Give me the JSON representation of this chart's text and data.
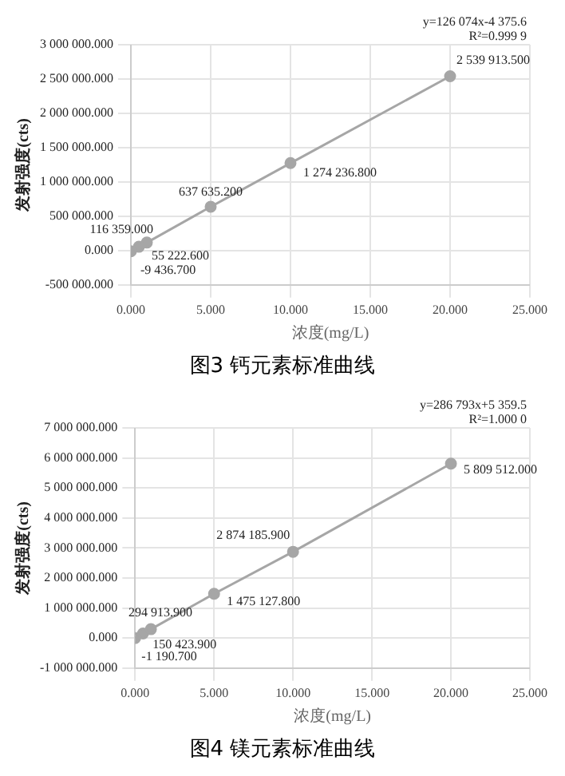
{
  "chart_data": [
    {
      "type": "line",
      "title": "图3 钙元素标准曲线",
      "xlabel": "浓度(mg/L)",
      "ylabel": "发射强度(cts)",
      "x": [
        0,
        0.5,
        1,
        5,
        10,
        20
      ],
      "series": [
        {
          "color": "#a6a6a6",
          "values": [
            -9436.7,
            55222.6,
            116359,
            637635.2,
            1274236.8,
            2539913.5
          ],
          "value_labels": [
            "-9 436.700",
            "55 222.600",
            "116 359.000",
            "637 635.200",
            "1 274 236.800",
            "2 539 913.500"
          ]
        }
      ],
      "xlim": [
        0,
        25
      ],
      "xticks": [
        {
          "value": 0,
          "label": "0.000"
        },
        {
          "value": 5,
          "label": "5.000"
        },
        {
          "value": 10,
          "label": "10.000"
        },
        {
          "value": 15,
          "label": "15.000"
        },
        {
          "value": 20,
          "label": "20.000"
        },
        {
          "value": 25,
          "label": "25.000"
        }
      ],
      "ylim": [
        -500000,
        3000000
      ],
      "yticks": [
        {
          "value": -500000,
          "label": "-500 000.000"
        },
        {
          "value": 0,
          "label": "0.000"
        },
        {
          "value": 500000,
          "label": "500 000.000"
        },
        {
          "value": 1000000,
          "label": "1 000 000.000"
        },
        {
          "value": 1500000,
          "label": "1 500 000.000"
        },
        {
          "value": 2000000,
          "label": "2 000 000.000"
        },
        {
          "value": 2500000,
          "label": "2 500 000.000"
        },
        {
          "value": 3000000,
          "label": "3 000 000.000"
        }
      ],
      "annotations": [
        "y=126 074x-4 375.6",
        "R²=0.999 9"
      ],
      "grid": true,
      "legend": false,
      "marker": "circle",
      "line_style": "solid"
    },
    {
      "type": "line",
      "title": "图4 镁元素标准曲线",
      "xlabel": "浓度(mg/L)",
      "ylabel": "发射强度(cts)",
      "x": [
        0,
        0.5,
        1,
        5,
        10,
        20
      ],
      "series": [
        {
          "color": "#a6a6a6",
          "values": [
            -1190.7,
            150423.9,
            294913.9,
            1475127.8,
            2874185.9,
            5809512
          ],
          "value_labels": [
            "-1 190.700",
            "150 423.900",
            "294 913.900",
            "1 475 127.800",
            "2 874 185.900",
            "5 809 512.000"
          ]
        }
      ],
      "xlim": [
        0,
        25
      ],
      "xticks": [
        {
          "value": 0,
          "label": "0.000"
        },
        {
          "value": 5,
          "label": "5.000"
        },
        {
          "value": 10,
          "label": "10.000"
        },
        {
          "value": 15,
          "label": "15.000"
        },
        {
          "value": 20,
          "label": "20.000"
        },
        {
          "value": 25,
          "label": "25.000"
        }
      ],
      "ylim": [
        -1000000,
        7000000
      ],
      "yticks": [
        {
          "value": -1000000,
          "label": "-1 000 000.000"
        },
        {
          "value": 0,
          "label": "0.000"
        },
        {
          "value": 1000000,
          "label": "1 000 000.000"
        },
        {
          "value": 2000000,
          "label": "2 000 000.000"
        },
        {
          "value": 3000000,
          "label": "3 000 000.000"
        },
        {
          "value": 4000000,
          "label": "4 000 000.000"
        },
        {
          "value": 5000000,
          "label": "5 000 000.000"
        },
        {
          "value": 6000000,
          "label": "6 000 000.000"
        },
        {
          "value": 7000000,
          "label": "7 000 000.000"
        }
      ],
      "annotations": [
        "y=286 793x+5 359.5",
        "R²=1.000 0"
      ],
      "grid": true,
      "legend": false,
      "marker": "circle",
      "line_style": "solid"
    }
  ]
}
